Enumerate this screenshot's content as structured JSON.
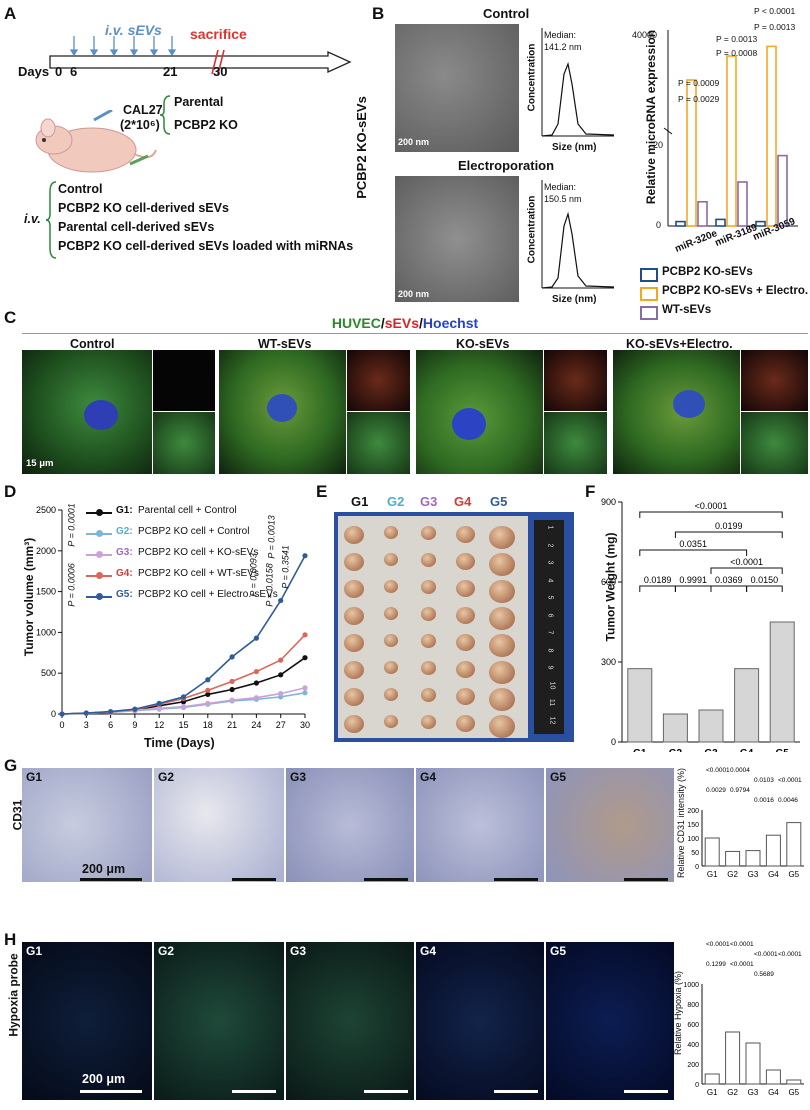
{
  "panelA": {
    "label": "A",
    "iv_label": "i.v. sEVs",
    "sacrifice_label": "sacrifice",
    "days_label": "Days",
    "ticks": [
      "0",
      "6",
      "21",
      "30"
    ],
    "cell_line": "CAL27",
    "cell_count": "(2*10⁶)",
    "groups_cells": [
      "Parental",
      "PCBP2 KO"
    ],
    "iv_prefix": "i.v.",
    "treatments": [
      "Control",
      "PCBP2 KO cell-derived sEVs",
      "Parental cell-derived sEVs",
      "PCBP2 KO cell-derived sEVs loaded with miRNAs"
    ]
  },
  "panelB": {
    "label": "B",
    "side_title": "PCBP2 KO-sEVs",
    "control_title": "Control",
    "electro_title": "Electroporation",
    "scale": "200 nm",
    "median_label": "Median:",
    "median_control": "141.2 nm",
    "median_electro": "150.5 nm",
    "ylabel": "Concentration",
    "xlabel": "Size (nm)",
    "xticks": [
      "0",
      "200",
      "400",
      "600"
    ],
    "bar_ylabel": "Relative microRNA expression",
    "categories": [
      "miR-320e",
      "miR-3189",
      "miR-3059"
    ],
    "legend": [
      "PCBP2 KO-sEVs",
      "PCBP2 KO-sEVs + Electro.",
      "WT-sEVs"
    ],
    "pvals": [
      "P = 0.0009",
      "P = 0.0029",
      "P = 0.0013",
      "P = 0.0008",
      "P < 0.0001",
      "P = 0.0013"
    ],
    "yticks": [
      "0",
      "20",
      "40000"
    ],
    "colors": {
      "ko": "#1f4e8c",
      "electro": "#f5a623",
      "wt": "#8a6aa8"
    }
  },
  "panelC": {
    "label": "C",
    "title_green": "HUVEC",
    "title_red": "sEVs",
    "title_blue": "Hoechst",
    "title_sep": "/",
    "conditions": [
      "Control",
      "WT-sEVs",
      "KO-sEVs",
      "KO-sEVs+Electro."
    ],
    "scale": "15 μm"
  },
  "panelD": {
    "label": "D",
    "ylabel": "Tumor volume (mm³)",
    "xlabel": "Time (Days)",
    "legend": [
      {
        "g": "G1:",
        "t": "Parental cell + Control",
        "color": "#111111"
      },
      {
        "g": "G2:",
        "t": "PCBP2 KO cell + Control",
        "color": "#7fb5d6"
      },
      {
        "g": "G3:",
        "t": "PCBP2 KO cell + KO-sEVs",
        "color": "#c9a2d8"
      },
      {
        "g": "G4:",
        "t": "PCBP2 KO cell + WT-sEVs",
        "color": "#d9685a"
      },
      {
        "g": "G5:",
        "t": "PCBP2 KO cell + Electro.-sEVs",
        "color": "#2f5d9a"
      }
    ],
    "pvals": [
      "P = 0.0001",
      "P = 0.0006",
      "P = 0.0093",
      "P = 0.0158",
      "P = 0.0013",
      "P = 0.3541"
    ]
  },
  "panelE": {
    "label": "E",
    "groups": [
      "G1",
      "G2",
      "G3",
      "G4",
      "G5"
    ],
    "group_colors": [
      "#111111",
      "#4fb0c6",
      "#9d6bb8",
      "#d23b3b",
      "#2f5d9a"
    ],
    "ruler_numbers": [
      "1",
      "2",
      "3",
      "4",
      "5",
      "6",
      "7",
      "8",
      "9",
      "10",
      "11",
      "12"
    ]
  },
  "panelF": {
    "label": "F",
    "ylabel": "Tumor Weight (mg)",
    "yticks": [
      "0",
      "300",
      "600",
      "900"
    ],
    "pvals": [
      "<0.0001",
      "0.0199",
      "0.0351",
      "<0.0001",
      "0.0189",
      "0.9991",
      "0.0369",
      "0.0150"
    ]
  },
  "panelG": {
    "label": "G",
    "side": "CD31",
    "tiles": [
      "G1",
      "G2",
      "G3",
      "G4",
      "G5"
    ],
    "scale": "200 μm",
    "ylabel": "Relative CD31 intensity (%)",
    "pvals": [
      "<0.0001",
      "0.0004",
      "0.0103",
      "<0.0001",
      "0.0029",
      "0.9794",
      "0.0016",
      "0.0046"
    ]
  },
  "panelH": {
    "label": "H",
    "side": "Hypoxia probe",
    "tiles": [
      "G1",
      "G2",
      "G3",
      "G4",
      "G5"
    ],
    "scale": "200 μm",
    "ylabel": "Relative Hypoxia (%)",
    "pvals": [
      "<0.0001",
      "<0.0001",
      "<0.0001",
      "<0.0001",
      "0.1299",
      "<0.0001",
      "0.5689"
    ]
  },
  "chart_data": [
    {
      "type": "line",
      "title": "",
      "xlabel": "Time (Days)",
      "ylabel": "Tumor volume (mm³)",
      "x": [
        0,
        3,
        6,
        9,
        12,
        15,
        18,
        21,
        24,
        27,
        30
      ],
      "xlim": [
        0,
        30
      ],
      "ylim": [
        0,
        2500
      ],
      "yticks": [
        0,
        500,
        1000,
        1500,
        2000,
        2500
      ],
      "series": [
        {
          "name": "G1",
          "color": "#111111",
          "values": [
            0,
            10,
            25,
            50,
            100,
            150,
            240,
            300,
            380,
            480,
            690
          ]
        },
        {
          "name": "G2",
          "color": "#7fb5d6",
          "values": [
            0,
            8,
            20,
            40,
            60,
            80,
            120,
            160,
            180,
            210,
            260
          ]
        },
        {
          "name": "G3",
          "color": "#c9a2d8",
          "values": [
            0,
            8,
            22,
            45,
            70,
            90,
            130,
            170,
            200,
            250,
            320
          ]
        },
        {
          "name": "G4",
          "color": "#d9685a",
          "values": [
            0,
            10,
            25,
            55,
            120,
            190,
            290,
            400,
            520,
            660,
            970
          ]
        },
        {
          "name": "G5",
          "color": "#2f5d9a",
          "values": [
            0,
            12,
            30,
            60,
            130,
            210,
            420,
            700,
            930,
            1390,
            1940
          ]
        }
      ]
    },
    {
      "type": "bar",
      "title": "",
      "ylabel": "Tumor Weight (mg)",
      "categories": [
        "G1",
        "G2",
        "G3",
        "G4",
        "G5"
      ],
      "values": [
        275,
        105,
        120,
        275,
        450
      ],
      "ylim": [
        0,
        900
      ]
    },
    {
      "type": "bar",
      "ylabel": "Relative CD31 intensity (%)",
      "categories": [
        "G1",
        "G2",
        "G3",
        "G4",
        "G5"
      ],
      "values": [
        100,
        52,
        55,
        110,
        155
      ],
      "ylim": [
        0,
        200
      ],
      "yticks": [
        0,
        50,
        100,
        150,
        200
      ]
    },
    {
      "type": "bar",
      "ylabel": "Relative Hypoxia (%)",
      "categories": [
        "G1",
        "G2",
        "G3",
        "G4",
        "G5"
      ],
      "values": [
        100,
        520,
        410,
        140,
        40
      ],
      "ylim": [
        0,
        1000
      ],
      "yticks": [
        0,
        200,
        400,
        600,
        800,
        1000
      ]
    },
    {
      "type": "bar",
      "ylabel": "Relative microRNA expression",
      "categories": [
        "miR-320e",
        "miR-3189",
        "miR-3059"
      ],
      "series": [
        {
          "name": "PCBP2 KO-sEVs",
          "values": [
            1,
            1.5,
            1
          ]
        },
        {
          "name": "PCBP2 KO-sEVs + Electro.",
          "values": [
            20000,
            30000,
            34000
          ]
        },
        {
          "name": "WT-sEVs",
          "values": [
            5.5,
            10,
            16
          ]
        }
      ]
    }
  ]
}
